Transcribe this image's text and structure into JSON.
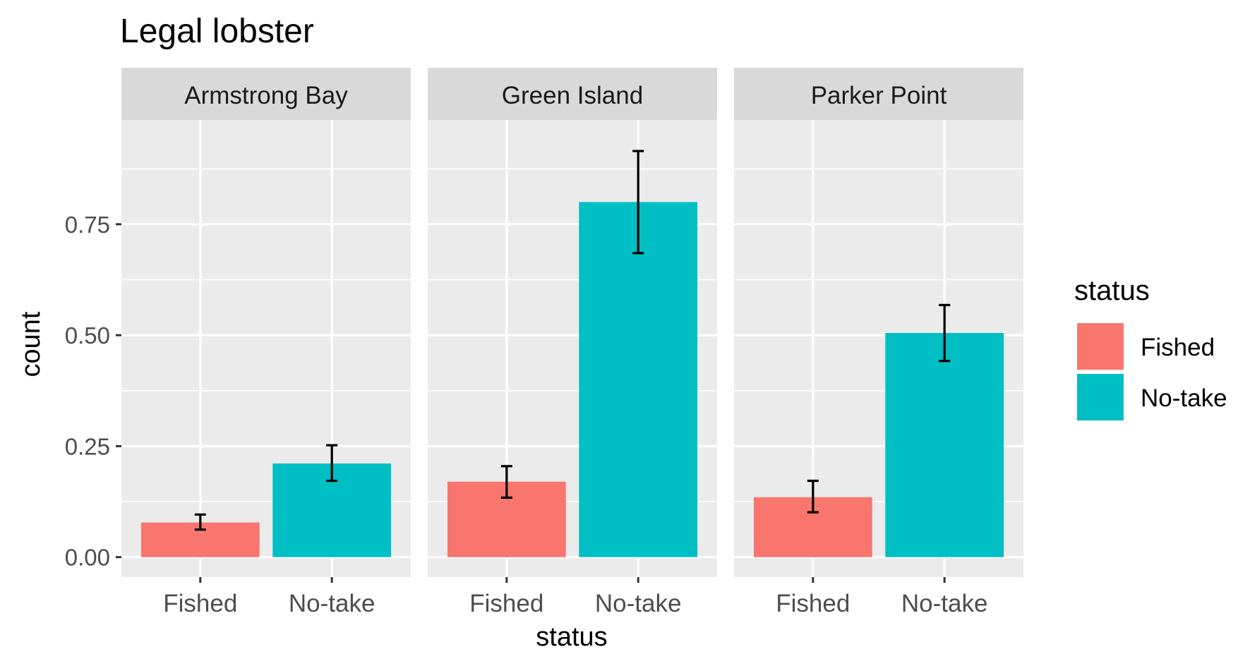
{
  "chart_data": {
    "type": "bar",
    "title": "Legal lobster",
    "xlabel": "status",
    "ylabel": "count",
    "ylim": [
      -0.045,
      0.985
    ],
    "yticks": [
      0.0,
      0.25,
      0.5,
      0.75
    ],
    "ytick_labels": [
      "0.00",
      "0.25",
      "0.50",
      "0.75"
    ],
    "grid": true,
    "legend": {
      "title": "status",
      "position": "right",
      "entries": [
        {
          "label": "Fished",
          "color": "#F8766D"
        },
        {
          "label": "No-take",
          "color": "#00BFC4"
        }
      ]
    },
    "categories": [
      "Fished",
      "No-take"
    ],
    "facets": [
      {
        "name": "Armstrong Bay",
        "bars": [
          {
            "category": "Fished",
            "value": 0.078,
            "err_low": 0.062,
            "err_high": 0.096
          },
          {
            "category": "No-take",
            "value": 0.211,
            "err_low": 0.172,
            "err_high": 0.252
          }
        ]
      },
      {
        "name": "Green Island",
        "bars": [
          {
            "category": "Fished",
            "value": 0.17,
            "err_low": 0.134,
            "err_high": 0.205
          },
          {
            "category": "No-take",
            "value": 0.8,
            "err_low": 0.685,
            "err_high": 0.915
          }
        ]
      },
      {
        "name": "Parker Point",
        "bars": [
          {
            "category": "Fished",
            "value": 0.135,
            "err_low": 0.101,
            "err_high": 0.172
          },
          {
            "category": "No-take",
            "value": 0.505,
            "err_low": 0.442,
            "err_high": 0.568
          }
        ]
      }
    ]
  }
}
